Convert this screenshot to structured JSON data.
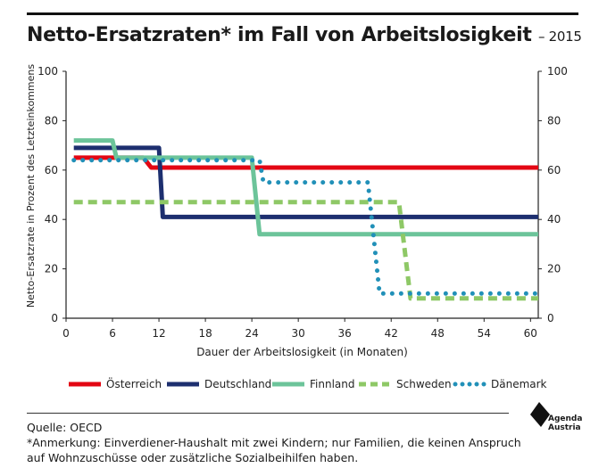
{
  "title": "Netto-Ersatzraten* im Fall von Arbeitslosigkeit",
  "title_suffix": "– 2015",
  "chart_data": {
    "type": "line",
    "title": "Netto-Ersatzraten* im Fall von Arbeitslosigkeit – 2015",
    "xlabel": "Dauer der Arbeitslosigkeit (in Monaten)",
    "ylabel": "Netto-Ersatzrate in Prozent des Letzteinkommens",
    "xlim": [
      0,
      61
    ],
    "ylim": [
      0,
      100
    ],
    "xticks": [
      0,
      6,
      12,
      18,
      24,
      30,
      36,
      42,
      48,
      54,
      60
    ],
    "yticks": [
      0,
      20,
      40,
      60,
      80,
      100
    ],
    "grid": false,
    "legend_position": "bottom",
    "series": [
      {
        "name": "Österreich",
        "color": "#e30613",
        "style": "solid",
        "points": [
          [
            1,
            65
          ],
          [
            10,
            65
          ],
          [
            11,
            61
          ],
          [
            61,
            61
          ]
        ]
      },
      {
        "name": "Deutschland",
        "color": "#1d2f6f",
        "style": "solid",
        "points": [
          [
            1,
            69
          ],
          [
            12,
            69
          ],
          [
            12.5,
            41
          ],
          [
            61,
            41
          ]
        ]
      },
      {
        "name": "Finnland",
        "color": "#6cc49a",
        "style": "solid",
        "points": [
          [
            1,
            72
          ],
          [
            6,
            72
          ],
          [
            6.5,
            65
          ],
          [
            24,
            65
          ],
          [
            25,
            34
          ],
          [
            61,
            34
          ]
        ]
      },
      {
        "name": "Schweden",
        "color": "#8ec866",
        "style": "dashed",
        "points": [
          [
            1,
            47
          ],
          [
            43,
            47
          ],
          [
            44.5,
            8
          ],
          [
            61,
            8
          ]
        ]
      },
      {
        "name": "Dänemark",
        "color": "#2190b8",
        "style": "dotted",
        "points": [
          [
            1,
            64
          ],
          [
            25,
            64
          ],
          [
            25.5,
            55
          ],
          [
            39,
            55
          ],
          [
            40.5,
            10
          ],
          [
            61,
            10
          ]
        ]
      }
    ]
  },
  "source": "Quelle: OECD",
  "note": "*Anmerkung: Einverdiener-Haushalt mit zwei Kindern; nur Familien, die keinen Anspruch auf Wohnzuschüsse oder zusätzliche Sozialbeihilfen haben.",
  "logo": {
    "line1": "Agenda",
    "line2": "Austria"
  }
}
